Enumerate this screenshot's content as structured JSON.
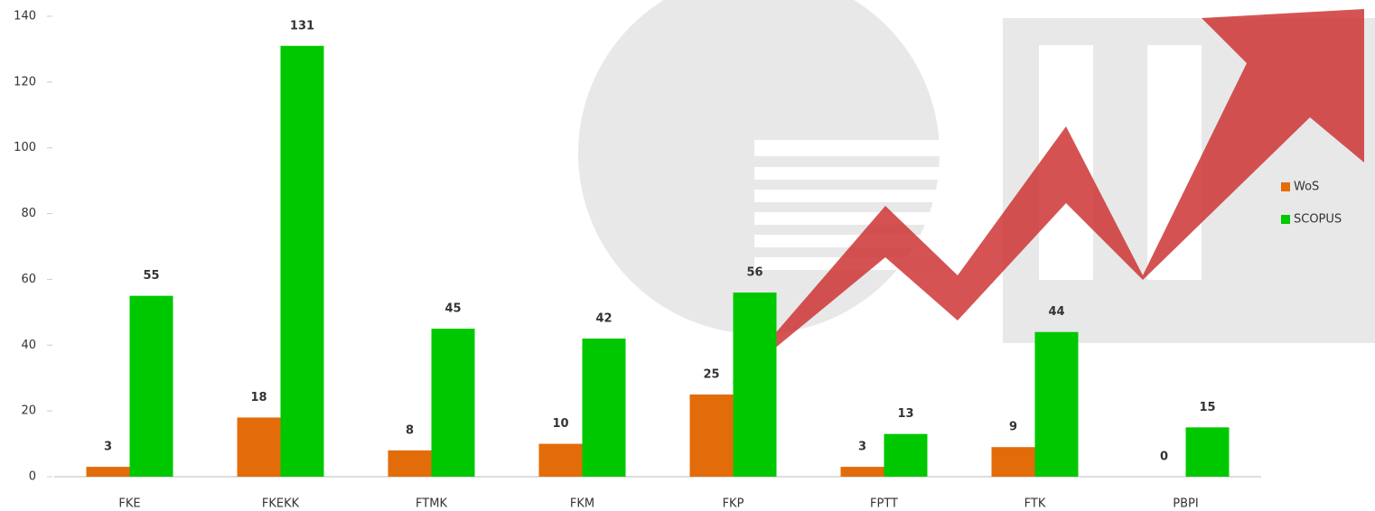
{
  "chart_data": {
    "type": "bar",
    "categories": [
      "FKE",
      "FKEKK",
      "FTMK",
      "FKM",
      "FKP",
      "FPTT",
      "FTK",
      "PBPI"
    ],
    "series": [
      {
        "name": "WoS",
        "color": "#e36c0a",
        "values": [
          3,
          18,
          8,
          10,
          25,
          3,
          9,
          0
        ]
      },
      {
        "name": "SCOPUS",
        "color": "#00c800",
        "values": [
          55,
          131,
          45,
          42,
          56,
          13,
          44,
          15
        ]
      }
    ],
    "ylim": [
      0,
      140
    ],
    "yticks": [
      0,
      20,
      40,
      60,
      80,
      100,
      120,
      140
    ],
    "legend": "right"
  }
}
